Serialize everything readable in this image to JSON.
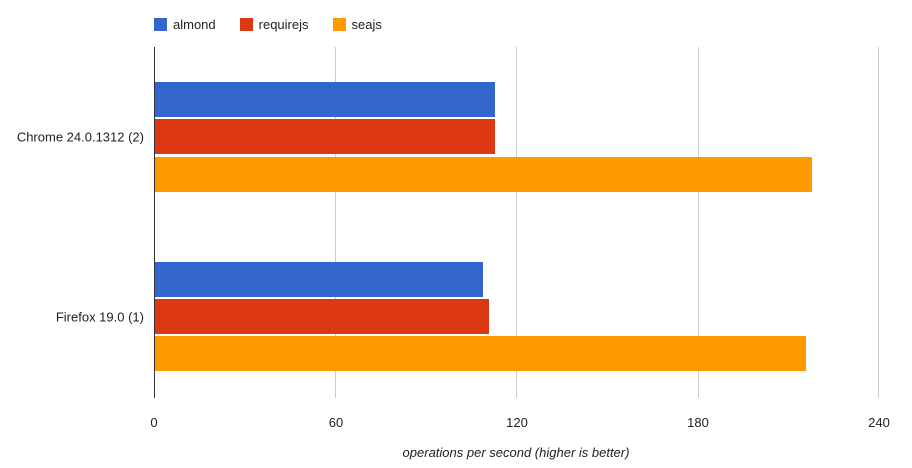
{
  "chart_data": {
    "type": "bar",
    "orientation": "horizontal",
    "title": "",
    "categories": [
      "Chrome 24.0.1312 (2)",
      "Firefox 19.0 (1)"
    ],
    "series": [
      {
        "name": "almond",
        "color": "#3366cc",
        "values": [
          112.6,
          108.7
        ]
      },
      {
        "name": "requirejs",
        "color": "#dc3912",
        "values": [
          112.6,
          110.7
        ]
      },
      {
        "name": "seajs",
        "color": "#ff9900",
        "values": [
          217.8,
          215.8
        ]
      }
    ],
    "xlabel": "operations per second (higher is better)",
    "ylabel": "",
    "xlim": [
      0,
      240
    ],
    "xticks": [
      "0",
      "60",
      "120",
      "180",
      "240"
    ],
    "grid": true,
    "legend_position": "top"
  },
  "legend": {
    "items": [
      {
        "label": "almond",
        "color": "#3366cc"
      },
      {
        "label": "requirejs",
        "color": "#dc3912"
      },
      {
        "label": "seajs",
        "color": "#ff9900"
      }
    ]
  }
}
